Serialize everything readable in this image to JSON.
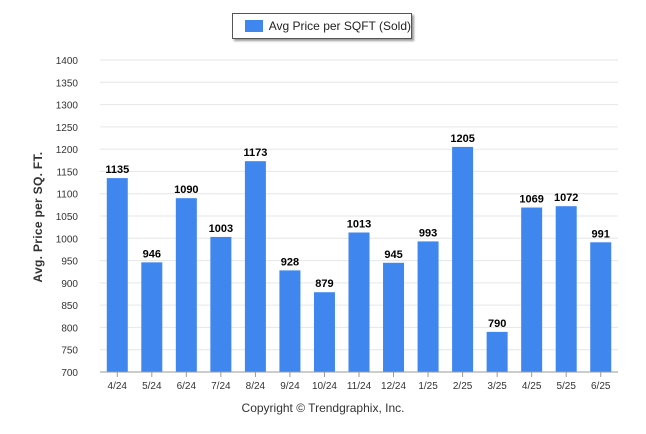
{
  "legend": {
    "label": "Avg Price per SQFT (Sold)"
  },
  "footer": {
    "text": "Copyright © Trendgraphix, Inc."
  },
  "colors": {
    "bar": "#3f86ee",
    "grid": "#e6e6e6",
    "axis": "#999999",
    "tick_text": "#333333",
    "value_text": "#000000"
  },
  "chart_data": {
    "type": "bar",
    "categories": [
      "4/24",
      "5/24",
      "6/24",
      "7/24",
      "8/24",
      "9/24",
      "10/24",
      "11/24",
      "12/24",
      "1/25",
      "2/25",
      "3/25",
      "4/25",
      "5/25",
      "6/25"
    ],
    "series": [
      {
        "name": "Avg Price per SQFT (Sold)",
        "values": [
          1135,
          946,
          1090,
          1003,
          1173,
          928,
          879,
          1013,
          945,
          993,
          1205,
          790,
          1069,
          1072,
          991
        ]
      }
    ],
    "ylabel": "Avg. Price per SQ. FT.",
    "xlabel": "",
    "ylim": [
      700,
      1400
    ],
    "yticks": [
      700,
      750,
      800,
      850,
      900,
      950,
      1000,
      1050,
      1100,
      1150,
      1200,
      1250,
      1300,
      1350,
      1400
    ],
    "grid": true,
    "legend_position": "top"
  }
}
